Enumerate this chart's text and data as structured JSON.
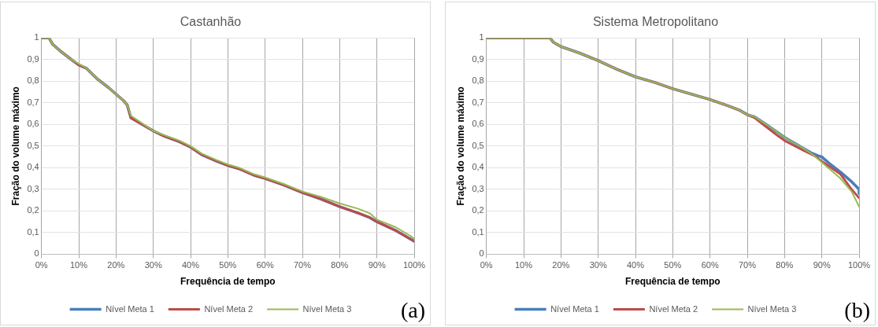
{
  "chart_data": [
    {
      "type": "line",
      "title": "Castanhão",
      "xlabel": "Frequência de tempo",
      "ylabel": "Fração do volume máximo",
      "xlim": [
        0,
        100
      ],
      "xticks": [
        {
          "value": 0,
          "label": "0%"
        },
        {
          "value": 10,
          "label": "10%"
        },
        {
          "value": 20,
          "label": "20%"
        },
        {
          "value": 30,
          "label": "30%"
        },
        {
          "value": 40,
          "label": "40%"
        },
        {
          "value": 50,
          "label": "50%"
        },
        {
          "value": 60,
          "label": "60%"
        },
        {
          "value": 70,
          "label": "70%"
        },
        {
          "value": 80,
          "label": "80%"
        },
        {
          "value": 90,
          "label": "90%"
        },
        {
          "value": 100,
          "label": "100%"
        }
      ],
      "ylim": [
        0,
        1
      ],
      "yticks": [
        {
          "value": 0,
          "label": "0"
        },
        {
          "value": 0.1,
          "label": "0,1"
        },
        {
          "value": 0.2,
          "label": "0,2"
        },
        {
          "value": 0.3,
          "label": "0,3"
        },
        {
          "value": 0.4,
          "label": "0,4"
        },
        {
          "value": 0.5,
          "label": "0,5"
        },
        {
          "value": 0.6,
          "label": "0,6"
        },
        {
          "value": 0.7,
          "label": "0,7"
        },
        {
          "value": 0.8,
          "label": "0,8"
        },
        {
          "value": 0.9,
          "label": "0,9"
        },
        {
          "value": 1,
          "label": "1"
        }
      ],
      "grid": true,
      "legend": "bottom",
      "marker": "none",
      "line_style": "solid",
      "annotations": [
        "(a)"
      ],
      "series": [
        {
          "name": "Nível Meta 1",
          "color": "#4a7ebb",
          "x": [
            0,
            2,
            3,
            5,
            8,
            10,
            12,
            15,
            18,
            20,
            22,
            23,
            24,
            27,
            30,
            33,
            37,
            40,
            43,
            47,
            50,
            53,
            57,
            60,
            65,
            70,
            75,
            80,
            85,
            88,
            90,
            95,
            100
          ],
          "values": [
            1,
            1,
            0.97,
            0.94,
            0.9,
            0.875,
            0.86,
            0.81,
            0.77,
            0.74,
            0.71,
            0.69,
            0.63,
            0.6,
            0.57,
            0.545,
            0.52,
            0.495,
            0.46,
            0.43,
            0.41,
            0.395,
            0.365,
            0.35,
            0.32,
            0.285,
            0.255,
            0.22,
            0.19,
            0.17,
            0.15,
            0.11,
            0.06
          ]
        },
        {
          "name": "Nível Meta 2",
          "color": "#be4b48",
          "x": [
            0,
            2,
            3,
            5,
            8,
            10,
            12,
            15,
            18,
            20,
            22,
            23,
            24,
            27,
            30,
            33,
            37,
            40,
            43,
            47,
            50,
            53,
            57,
            60,
            65,
            70,
            75,
            80,
            85,
            88,
            90,
            95,
            100
          ],
          "values": [
            1,
            1,
            0.97,
            0.94,
            0.9,
            0.875,
            0.86,
            0.81,
            0.77,
            0.74,
            0.71,
            0.69,
            0.63,
            0.6,
            0.57,
            0.545,
            0.52,
            0.495,
            0.46,
            0.43,
            0.41,
            0.395,
            0.365,
            0.35,
            0.32,
            0.285,
            0.255,
            0.22,
            0.19,
            0.17,
            0.15,
            0.11,
            0.06
          ]
        },
        {
          "name": "Nível Meta 3",
          "color": "#98b954",
          "x": [
            0,
            2,
            3,
            5,
            8,
            10,
            12,
            15,
            18,
            20,
            22,
            23,
            24,
            27,
            30,
            33,
            37,
            40,
            43,
            47,
            50,
            53,
            57,
            60,
            65,
            70,
            75,
            80,
            85,
            88,
            90,
            95,
            99,
            100
          ],
          "values": [
            1,
            1,
            0.97,
            0.94,
            0.9,
            0.88,
            0.86,
            0.81,
            0.77,
            0.74,
            0.71,
            0.69,
            0.64,
            0.605,
            0.57,
            0.55,
            0.525,
            0.5,
            0.465,
            0.435,
            0.415,
            0.4,
            0.37,
            0.355,
            0.325,
            0.29,
            0.265,
            0.235,
            0.21,
            0.19,
            0.16,
            0.125,
            0.085,
            0.07
          ]
        }
      ]
    },
    {
      "type": "line",
      "title": "Sistema Metropolitano",
      "xlabel": "Frequência de tempo",
      "ylabel": "Fração do volume máximo",
      "xlim": [
        0,
        100
      ],
      "xticks": [
        {
          "value": 0,
          "label": "0%"
        },
        {
          "value": 10,
          "label": "10%"
        },
        {
          "value": 20,
          "label": "20%"
        },
        {
          "value": 30,
          "label": "30%"
        },
        {
          "value": 40,
          "label": "40%"
        },
        {
          "value": 50,
          "label": "50%"
        },
        {
          "value": 60,
          "label": "60%"
        },
        {
          "value": 70,
          "label": "70%"
        },
        {
          "value": 80,
          "label": "80%"
        },
        {
          "value": 90,
          "label": "90%"
        },
        {
          "value": 100,
          "label": "100%"
        }
      ],
      "ylim": [
        0,
        1
      ],
      "yticks": [
        {
          "value": 0,
          "label": "0"
        },
        {
          "value": 0.1,
          "label": "0,1"
        },
        {
          "value": 0.2,
          "label": "0,2"
        },
        {
          "value": 0.3,
          "label": "0,3"
        },
        {
          "value": 0.4,
          "label": "0,4"
        },
        {
          "value": 0.5,
          "label": "0,5"
        },
        {
          "value": 0.6,
          "label": "0,6"
        },
        {
          "value": 0.7,
          "label": "0,7"
        },
        {
          "value": 0.8,
          "label": "0,8"
        },
        {
          "value": 0.9,
          "label": "0,9"
        },
        {
          "value": 1,
          "label": "1"
        }
      ],
      "grid": true,
      "legend": "bottom",
      "marker": "none",
      "line_style": "solid",
      "annotations": [
        "(b)"
      ],
      "series": [
        {
          "name": "Nível Meta 1",
          "color": "#4a7ebb",
          "x": [
            0,
            17,
            18,
            20,
            25,
            30,
            35,
            40,
            45,
            50,
            55,
            60,
            65,
            68,
            70,
            72,
            75,
            78,
            80,
            85,
            87,
            89,
            90,
            92,
            95,
            98,
            100,
            100
          ],
          "values": [
            1,
            1,
            0.98,
            0.96,
            0.93,
            0.895,
            0.855,
            0.82,
            0.795,
            0.765,
            0.74,
            0.715,
            0.685,
            0.665,
            0.645,
            0.635,
            0.6,
            0.565,
            0.54,
            0.49,
            0.47,
            0.455,
            0.45,
            0.42,
            0.38,
            0.335,
            0.3,
            0.28
          ]
        },
        {
          "name": "Nível Meta 2",
          "color": "#be4b48",
          "x": [
            0,
            17,
            18,
            20,
            25,
            30,
            35,
            40,
            45,
            50,
            55,
            60,
            65,
            68,
            70,
            72,
            75,
            78,
            80,
            85,
            88,
            90,
            95,
            98,
            100
          ],
          "values": [
            1,
            1,
            0.98,
            0.96,
            0.93,
            0.895,
            0.855,
            0.82,
            0.795,
            0.765,
            0.74,
            0.715,
            0.685,
            0.665,
            0.645,
            0.63,
            0.59,
            0.55,
            0.525,
            0.48,
            0.455,
            0.43,
            0.37,
            0.3,
            0.26
          ]
        },
        {
          "name": "Nível Meta 3",
          "color": "#98b954",
          "x": [
            0,
            17,
            18,
            20,
            25,
            30,
            35,
            40,
            45,
            50,
            55,
            60,
            65,
            68,
            70,
            72,
            75,
            78,
            80,
            85,
            88,
            90,
            95,
            98,
            100
          ],
          "values": [
            1,
            1,
            0.98,
            0.96,
            0.93,
            0.895,
            0.855,
            0.82,
            0.795,
            0.765,
            0.74,
            0.715,
            0.685,
            0.665,
            0.645,
            0.635,
            0.6,
            0.565,
            0.54,
            0.49,
            0.455,
            0.425,
            0.35,
            0.29,
            0.22
          ]
        }
      ]
    }
  ]
}
